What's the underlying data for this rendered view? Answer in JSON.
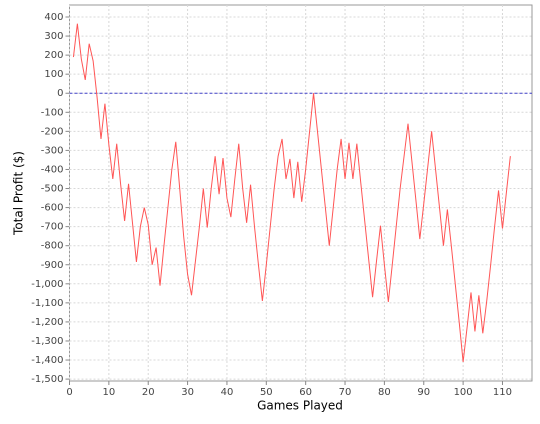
{
  "chart_data": {
    "type": "line",
    "x_label": "Games Played",
    "y_label": "Total Profit ($)",
    "x": [
      1,
      2,
      3,
      4,
      5,
      6,
      7,
      8,
      9,
      10,
      11,
      12,
      13,
      14,
      15,
      16,
      17,
      18,
      19,
      20,
      21,
      22,
      23,
      24,
      25,
      26,
      27,
      28,
      29,
      30,
      31,
      32,
      33,
      34,
      35,
      36,
      37,
      38,
      39,
      40,
      41,
      42,
      43,
      44,
      45,
      46,
      47,
      48,
      49,
      50,
      51,
      52,
      53,
      54,
      55,
      56,
      57,
      58,
      59,
      60,
      61,
      62,
      63,
      64,
      65,
      66,
      67,
      68,
      69,
      70,
      71,
      72,
      73,
      74,
      75,
      76,
      77,
      78,
      79,
      80,
      81,
      82,
      83,
      84,
      85,
      86,
      87,
      88,
      89,
      90,
      91,
      92,
      93,
      94,
      95,
      96,
      97,
      98,
      99,
      100,
      101,
      102,
      103,
      104,
      105,
      106,
      107,
      108,
      109,
      110,
      111,
      112
    ],
    "series": [
      {
        "color": "#ff5555",
        "values": [
          190,
          365,
          180,
          70,
          260,
          170,
          -20,
          -240,
          -55,
          -270,
          -450,
          -265,
          -480,
          -670,
          -475,
          -680,
          -885,
          -700,
          -600,
          -690,
          -900,
          -810,
          -1010,
          -800,
          -600,
          -400,
          -255,
          -500,
          -750,
          -950,
          -1060,
          -880,
          -700,
          -500,
          -705,
          -500,
          -330,
          -530,
          -340,
          -550,
          -650,
          -450,
          -265,
          -500,
          -680,
          -480,
          -700,
          -900,
          -1090,
          -900,
          -700,
          -500,
          -330,
          -240,
          -450,
          -345,
          -550,
          -360,
          -570,
          -400,
          -200,
          0,
          -200,
          -400,
          -600,
          -800,
          -600,
          -400,
          -240,
          -450,
          -260,
          -450,
          -265,
          -470,
          -670,
          -870,
          -1070,
          -880,
          -695,
          -900,
          -1095,
          -900,
          -700,
          -500,
          -330,
          -160,
          -360,
          -560,
          -765,
          -580,
          -390,
          -200,
          -400,
          -600,
          -800,
          -610,
          -800,
          -1000,
          -1200,
          -1410,
          -1230,
          -1045,
          -1250,
          -1060,
          -1260,
          -1090,
          -900,
          -700,
          -510,
          -710,
          -520,
          -330
        ]
      }
    ],
    "xlim": [
      0,
      117.5
    ],
    "xticks": [
      0,
      10,
      20,
      30,
      40,
      50,
      60,
      70,
      80,
      90,
      100,
      110
    ],
    "ylim": [
      -1510,
      463
    ],
    "yticks": [
      {
        "value": -1500,
        "label": "-1,500"
      },
      {
        "value": -1400,
        "label": "-1,400"
      },
      {
        "value": -1300,
        "label": "-1,300"
      },
      {
        "value": -1200,
        "label": "-1,200"
      },
      {
        "value": -1100,
        "label": "-1,100"
      },
      {
        "value": -1000,
        "label": "-1,000"
      },
      -900,
      -800,
      -700,
      -600,
      -500,
      -400,
      -300,
      -200,
      -100,
      0,
      100,
      200,
      300,
      400
    ],
    "grid": true,
    "zero_line": true,
    "zero_line_color": "#4444cc",
    "grid_color": "#d8d8d8"
  }
}
